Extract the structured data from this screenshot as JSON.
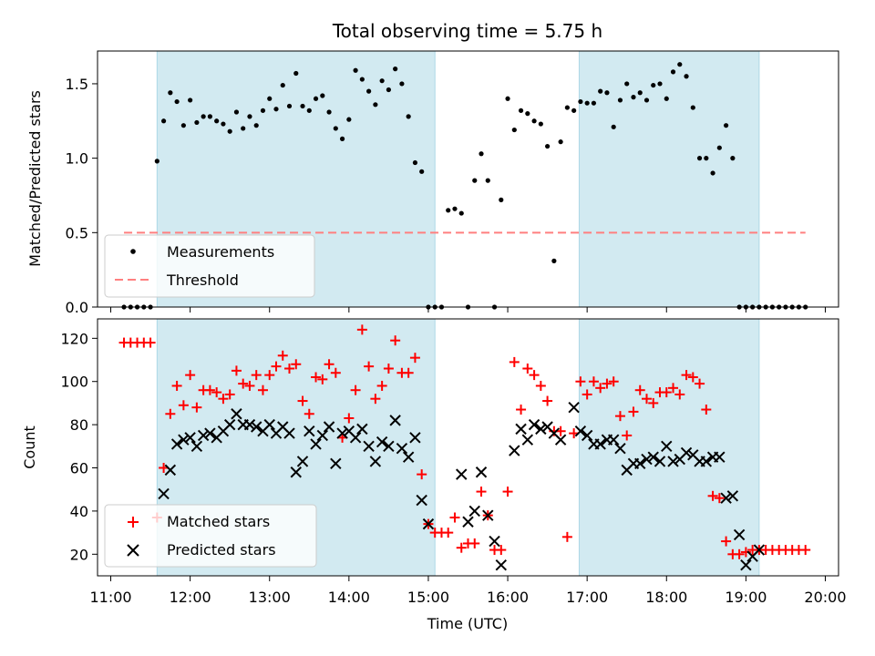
{
  "chart_data": [
    {
      "type": "scatter",
      "title": "Total observing time = 5.75 h",
      "ylabel": "Matched/Predicted stars",
      "ylim": [
        0,
        1.72
      ],
      "xlim": [
        "10:50",
        "20:10"
      ],
      "yticks": [
        "0.0",
        "0.5",
        "1.0",
        "1.5"
      ],
      "threshold": {
        "name": "Threshold",
        "value": 0.5,
        "x": [
          "11:10",
          "19:45"
        ],
        "color": "#ff7f7f"
      },
      "legend": {
        "placement": "lower-left",
        "entries": [
          "Measurements",
          "Threshold"
        ]
      },
      "shaded_intervals": [
        [
          "11:35",
          "15:05"
        ],
        [
          "16:54",
          "19:10"
        ]
      ],
      "shade_color": "#add8e6",
      "series": [
        {
          "name": "Measurements",
          "color": "#000000",
          "x": [
            "11:10",
            "11:15",
            "11:20",
            "11:25",
            "11:30",
            "11:35",
            "11:40",
            "11:45",
            "11:50",
            "11:55",
            "12:00",
            "12:05",
            "12:10",
            "12:15",
            "12:20",
            "12:25",
            "12:30",
            "12:35",
            "12:40",
            "12:45",
            "12:50",
            "12:55",
            "13:00",
            "13:05",
            "13:10",
            "13:15",
            "13:20",
            "13:25",
            "13:30",
            "13:35",
            "13:40",
            "13:45",
            "13:50",
            "13:55",
            "14:00",
            "14:05",
            "14:10",
            "14:15",
            "14:20",
            "14:25",
            "14:30",
            "14:35",
            "14:40",
            "14:45",
            "14:50",
            "14:55",
            "15:00",
            "15:05",
            "15:10",
            "15:15",
            "15:20",
            "15:25",
            "15:30",
            "15:35",
            "15:40",
            "15:45",
            "15:50",
            "15:55",
            "16:00",
            "16:05",
            "16:10",
            "16:15",
            "16:20",
            "16:25",
            "16:30",
            "16:35",
            "16:40",
            "16:45",
            "16:50",
            "16:55",
            "17:00",
            "17:05",
            "17:10",
            "17:15",
            "17:20",
            "17:25",
            "17:30",
            "17:35",
            "17:40",
            "17:45",
            "17:50",
            "17:55",
            "18:00",
            "18:05",
            "18:10",
            "18:15",
            "18:20",
            "18:25",
            "18:30",
            "18:35",
            "18:40",
            "18:45",
            "18:50",
            "18:55",
            "19:00",
            "19:05",
            "19:10",
            "19:15",
            "19:20",
            "19:25",
            "19:30",
            "19:35",
            "19:40",
            "19:45"
          ],
          "y": [
            0,
            0,
            0,
            0,
            0,
            0.98,
            1.25,
            1.44,
            1.38,
            1.22,
            1.39,
            1.24,
            1.28,
            1.28,
            1.25,
            1.23,
            1.18,
            1.31,
            1.2,
            1.28,
            1.22,
            1.32,
            1.4,
            1.33,
            1.49,
            1.35,
            1.57,
            1.35,
            1.32,
            1.4,
            1.42,
            1.31,
            1.2,
            1.13,
            1.26,
            1.59,
            1.53,
            1.45,
            1.36,
            1.52,
            1.46,
            1.6,
            1.5,
            1.28,
            0.97,
            0.91,
            0,
            0,
            0,
            0.65,
            0.66,
            0.63,
            0,
            0.85,
            1.03,
            0.85,
            0,
            0.72,
            1.4,
            1.19,
            1.32,
            1.3,
            1.25,
            1.23,
            1.08,
            0.31,
            1.11,
            1.34,
            1.32,
            1.38,
            1.37,
            1.37,
            1.45,
            1.44,
            1.21,
            1.39,
            1.5,
            1.41,
            1.44,
            1.39,
            1.49,
            1.5,
            1.4,
            1.58,
            1.63,
            1.55,
            1.34,
            1.0,
            1.0,
            0.9,
            1.07,
            1.22,
            1.0,
            0,
            0,
            0,
            0,
            0,
            0,
            0,
            0,
            0,
            0,
            0
          ]
        }
      ]
    },
    {
      "type": "scatter",
      "title": "",
      "xlabel": "Time (UTC)",
      "ylabel": "Count",
      "ylim": [
        10,
        129
      ],
      "xlim": [
        "10:50",
        "20:10"
      ],
      "yticks": [
        "20",
        "40",
        "60",
        "80",
        "100",
        "120"
      ],
      "xticks": [
        "11:00",
        "12:00",
        "13:00",
        "14:00",
        "15:00",
        "16:00",
        "17:00",
        "18:00",
        "19:00",
        "20:00"
      ],
      "legend": {
        "placement": "lower-left",
        "entries": [
          "Matched stars",
          "Predicted stars"
        ]
      },
      "shaded_intervals": [
        [
          "11:35",
          "15:05"
        ],
        [
          "16:54",
          "19:10"
        ]
      ],
      "shade_color": "#add8e6",
      "series": [
        {
          "name": "Matched stars",
          "color": "#ff0000",
          "marker": "+",
          "x": [
            "11:10",
            "11:15",
            "11:20",
            "11:25",
            "11:30",
            "11:35",
            "11:40",
            "11:45",
            "11:50",
            "11:55",
            "12:00",
            "12:05",
            "12:10",
            "12:15",
            "12:20",
            "12:25",
            "12:30",
            "12:35",
            "12:40",
            "12:45",
            "12:50",
            "12:55",
            "13:00",
            "13:05",
            "13:10",
            "13:15",
            "13:20",
            "13:25",
            "13:30",
            "13:35",
            "13:40",
            "13:45",
            "13:50",
            "13:55",
            "14:00",
            "14:05",
            "14:10",
            "14:15",
            "14:20",
            "14:25",
            "14:30",
            "14:35",
            "14:40",
            "14:45",
            "14:50",
            "14:55",
            "15:00",
            "15:05",
            "15:10",
            "15:15",
            "15:20",
            "15:25",
            "15:30",
            "15:35",
            "15:40",
            "15:45",
            "15:50",
            "15:55",
            "16:00",
            "16:05",
            "16:10",
            "16:15",
            "16:20",
            "16:25",
            "16:30",
            "16:35",
            "16:40",
            "16:45",
            "16:50",
            "16:55",
            "17:00",
            "17:05",
            "17:10",
            "17:15",
            "17:20",
            "17:25",
            "17:30",
            "17:35",
            "17:40",
            "17:45",
            "17:50",
            "17:55",
            "18:00",
            "18:05",
            "18:10",
            "18:15",
            "18:20",
            "18:25",
            "18:30",
            "18:35",
            "18:40",
            "18:45",
            "18:50",
            "18:55",
            "19:00",
            "19:05",
            "19:10",
            "19:15",
            "19:20",
            "19:25",
            "19:30",
            "19:35",
            "19:40",
            "19:45"
          ],
          "y": [
            118,
            118,
            118,
            118,
            118,
            37,
            60,
            85,
            98,
            89,
            103,
            88,
            96,
            96,
            95,
            92,
            94,
            105,
            99,
            98,
            103,
            96,
            103,
            107,
            112,
            106,
            108,
            91,
            85,
            102,
            101,
            108,
            104,
            74,
            83,
            96,
            124,
            107,
            92,
            98,
            106,
            119,
            104,
            104,
            111,
            57,
            34,
            30,
            30,
            30,
            37,
            23,
            25,
            25,
            49,
            38,
            22,
            22,
            49,
            109,
            87,
            106,
            103,
            98,
            91,
            77,
            77,
            28,
            76,
            100,
            94,
            100,
            97,
            99,
            100,
            84,
            75,
            86,
            96,
            92,
            90,
            95,
            95,
            97,
            94,
            103,
            102,
            99,
            87,
            47,
            46,
            26,
            20,
            20,
            21,
            22,
            22,
            22,
            22,
            22,
            22,
            22,
            22,
            22
          ]
        },
        {
          "name": "Predicted stars",
          "color": "#000000",
          "marker": "x",
          "x": [
            "11:40",
            "11:45",
            "11:50",
            "11:55",
            "12:00",
            "12:05",
            "12:10",
            "12:15",
            "12:20",
            "12:25",
            "12:30",
            "12:35",
            "12:40",
            "12:45",
            "12:50",
            "12:55",
            "13:00",
            "13:05",
            "13:10",
            "13:15",
            "13:20",
            "13:25",
            "13:30",
            "13:35",
            "13:40",
            "13:45",
            "13:50",
            "13:55",
            "14:00",
            "14:05",
            "14:10",
            "14:15",
            "14:20",
            "14:25",
            "14:30",
            "14:35",
            "14:40",
            "14:45",
            "14:50",
            "14:55",
            "15:00",
            "15:25",
            "15:30",
            "15:35",
            "15:40",
            "15:45",
            "15:50",
            "15:55",
            "16:05",
            "16:10",
            "16:15",
            "16:20",
            "16:25",
            "16:30",
            "16:35",
            "16:40",
            "16:50",
            "16:55",
            "17:00",
            "17:05",
            "17:10",
            "17:15",
            "17:20",
            "17:25",
            "17:30",
            "17:35",
            "17:40",
            "17:45",
            "17:50",
            "17:55",
            "18:00",
            "18:05",
            "18:10",
            "18:15",
            "18:20",
            "18:25",
            "18:30",
            "18:35",
            "18:40",
            "18:45",
            "18:50",
            "18:55",
            "19:00",
            "19:05",
            "19:10"
          ],
          "y": [
            48,
            59,
            71,
            73,
            74,
            70,
            75,
            76,
            74,
            77,
            80,
            85,
            80,
            80,
            79,
            77,
            80,
            76,
            79,
            76,
            58,
            63,
            77,
            71,
            75,
            79,
            62,
            76,
            77,
            74,
            78,
            70,
            63,
            72,
            70,
            82,
            69,
            65,
            74,
            45,
            34,
            57,
            35,
            40,
            58,
            38,
            26,
            15,
            68,
            78,
            73,
            80,
            78,
            79,
            76,
            73,
            88,
            77,
            75,
            71,
            71,
            73,
            73,
            69,
            59,
            62,
            62,
            64,
            65,
            63,
            70,
            63,
            64,
            67,
            66,
            63,
            63,
            65,
            65,
            46,
            47,
            29,
            15,
            19,
            22
          ]
        }
      ]
    }
  ]
}
